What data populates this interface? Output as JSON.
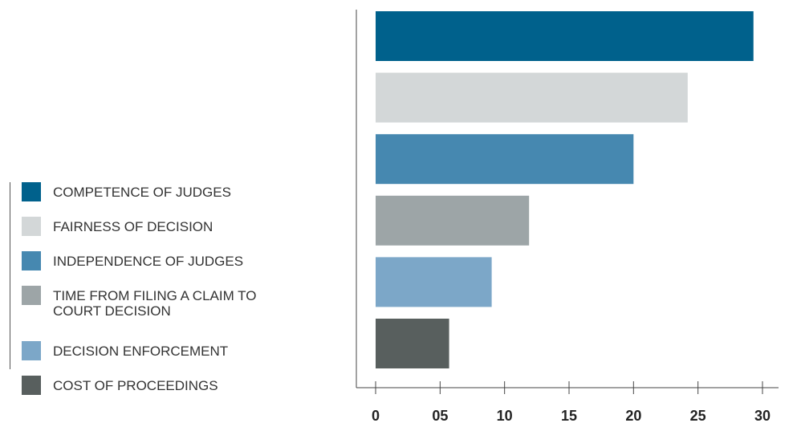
{
  "chart_data": {
    "type": "bar",
    "orientation": "horizontal",
    "categories": [
      "COMPETENCE OF JUDGES",
      "FAIRNESS OF DECISION",
      "INDEPENDENCE OF JUDGES",
      "TIME FROM FILING A CLAIM TO COURT DECISION",
      "DECISION ENFORCEMENT",
      "COST OF PROCEEDINGS"
    ],
    "legend_labels": [
      [
        "COMPETENCE OF JUDGES"
      ],
      [
        "FAIRNESS OF DECISION"
      ],
      [
        "INDEPENDENCE OF JUDGES"
      ],
      [
        "TIME FROM FILING A CLAIM TO",
        "COURT DECISION"
      ],
      [
        "DECISION ENFORCEMENT"
      ],
      [
        "COST OF PROCEEDINGS"
      ]
    ],
    "values": [
      29.3,
      24.2,
      20.0,
      11.9,
      9.0,
      5.7
    ],
    "colors": [
      "#00618c",
      "#d3d7d8",
      "#4688b0",
      "#9da5a7",
      "#7ca7c8",
      "#585f5e"
    ],
    "xlim": [
      0,
      30
    ],
    "xticks": [
      0,
      5,
      10,
      15,
      20,
      25,
      30
    ],
    "xtick_labels": [
      "0",
      "05",
      "10",
      "15",
      "20",
      "25",
      "30"
    ],
    "legend_position": "left",
    "grid": false
  }
}
